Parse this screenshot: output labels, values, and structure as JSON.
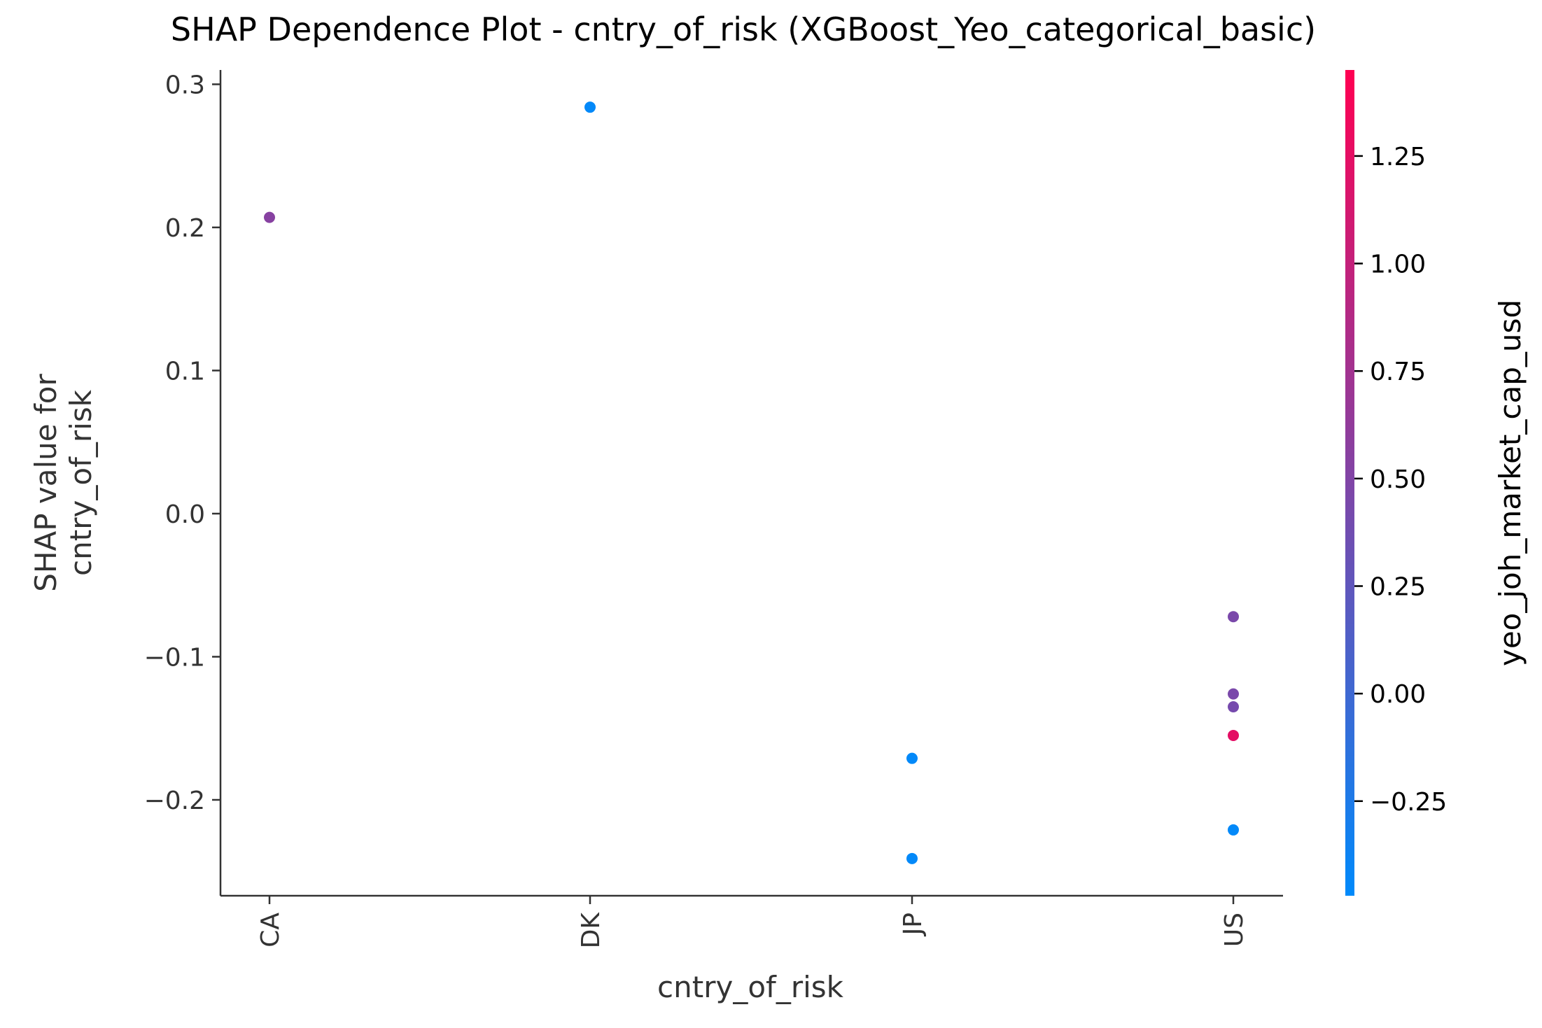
{
  "chart_data": {
    "type": "scatter",
    "title": "SHAP Dependence Plot - cntry_of_risk (XGBoost_Yeo_categorical_basic)",
    "xlabel": "cntry_of_risk",
    "ylabel": [
      "SHAP value for",
      "cntry_of_risk"
    ],
    "categories": [
      "CA",
      "DK",
      "JP",
      "US"
    ],
    "ylim": [
      -0.267,
      0.31
    ],
    "yticks": [
      {
        "value": 0.3,
        "label": "0.3"
      },
      {
        "value": 0.2,
        "label": "0.2"
      },
      {
        "value": 0.1,
        "label": "0.1"
      },
      {
        "value": 0.0,
        "label": "0.0"
      },
      {
        "value": -0.1,
        "label": "−0.1"
      },
      {
        "value": -0.2,
        "label": "−0.2"
      }
    ],
    "points": [
      {
        "x": "CA",
        "y": 0.207,
        "c": 0.55
      },
      {
        "x": "DK",
        "y": 0.284,
        "c": -0.45
      },
      {
        "x": "JP",
        "y": -0.171,
        "c": -0.45
      },
      {
        "x": "JP",
        "y": -0.241,
        "c": -0.45
      },
      {
        "x": "US",
        "y": -0.072,
        "c": 0.45
      },
      {
        "x": "US",
        "y": -0.126,
        "c": 0.45
      },
      {
        "x": "US",
        "y": -0.135,
        "c": 0.42
      },
      {
        "x": "US",
        "y": -0.155,
        "c": 1.25
      },
      {
        "x": "US",
        "y": -0.221,
        "c": -0.45
      }
    ],
    "colorbar": {
      "label": "yeo_joh_market_cap_usd",
      "range": [
        -0.47,
        1.45
      ],
      "ticks": [
        {
          "value": 1.25,
          "label": "1.25"
        },
        {
          "value": 1.0,
          "label": "1.00"
        },
        {
          "value": 0.75,
          "label": "0.75"
        },
        {
          "value": 0.5,
          "label": "0.50"
        },
        {
          "value": 0.25,
          "label": "0.25"
        },
        {
          "value": 0.0,
          "label": "0.00"
        },
        {
          "value": -0.25,
          "label": "−0.25"
        }
      ],
      "colormap": [
        "#008afb",
        "#ff0052"
      ]
    },
    "grid": false,
    "legend": "none"
  }
}
